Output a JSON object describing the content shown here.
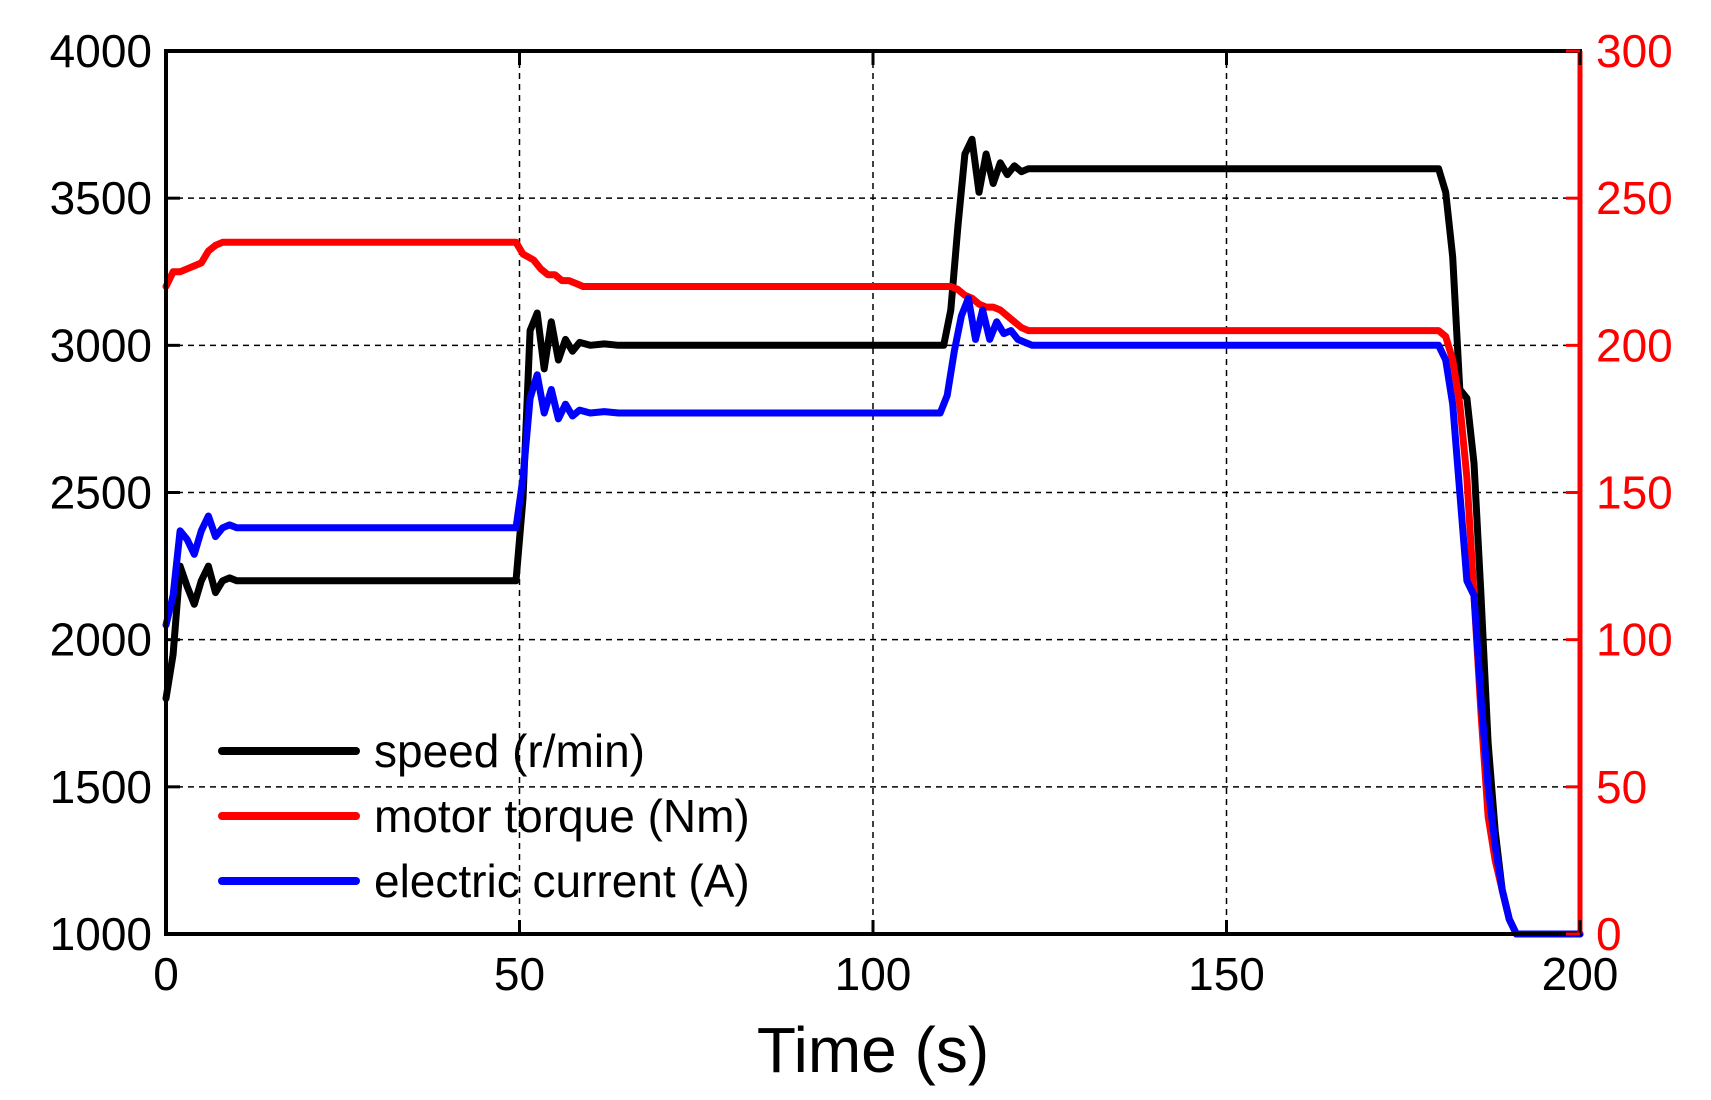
{
  "chart_data": {
    "type": "line",
    "title": "",
    "xlabel": "Time (s)",
    "ylabel_left": "",
    "ylabel_right": "",
    "xlim": [
      0,
      200
    ],
    "ylim_left": [
      1000,
      4000
    ],
    "ylim_right": [
      0,
      300
    ],
    "xticks": [
      "0",
      "50",
      "100",
      "150",
      "200"
    ],
    "yticks_left": [
      "1000",
      "1500",
      "2000",
      "2500",
      "3000",
      "3500",
      "4000"
    ],
    "yticks_right": [
      "0",
      "50",
      "100",
      "150",
      "200",
      "250",
      "300"
    ],
    "grid": true,
    "legend_position": "bottom-left",
    "colors": {
      "axis": "#000000",
      "right_axis": "#ff0000",
      "grid": "#000000"
    },
    "series": [
      {
        "name": "speed (r/min)",
        "axis": "left",
        "color": "#000000",
        "x": [
          0,
          1,
          2,
          3,
          4,
          5,
          6,
          7,
          8,
          9,
          10,
          12,
          20,
          30,
          40,
          49.5,
          50.5,
          51.5,
          52.5,
          53.5,
          54.5,
          55.5,
          56.5,
          57.5,
          58.5,
          60,
          62,
          64,
          80,
          100,
          110,
          111,
          112,
          113,
          114,
          115,
          116,
          117,
          118,
          119,
          120,
          121,
          122,
          123,
          124,
          140,
          160,
          180,
          181,
          182,
          183,
          184,
          185,
          186,
          187,
          188,
          189,
          190,
          191,
          192,
          193,
          200
        ],
        "values": [
          1800,
          1950,
          2250,
          2180,
          2120,
          2200,
          2250,
          2160,
          2200,
          2210,
          2200,
          2200,
          2200,
          2200,
          2200,
          2200,
          2480,
          3050,
          3110,
          2920,
          3080,
          2950,
          3020,
          2980,
          3010,
          3000,
          3005,
          3000,
          3000,
          3000,
          3000,
          3120,
          3400,
          3650,
          3700,
          3520,
          3650,
          3550,
          3620,
          3580,
          3610,
          3590,
          3600,
          3600,
          3600,
          3600,
          3600,
          3600,
          3520,
          3300,
          2850,
          2820,
          2600,
          2150,
          1650,
          1350,
          1150,
          1050,
          1000,
          1000,
          1000,
          1000
        ]
      },
      {
        "name": "motor torque (Nm)",
        "axis": "right",
        "color": "#ff0000",
        "x": [
          0,
          1,
          2,
          3,
          4,
          5,
          6,
          7,
          8,
          9,
          10,
          20,
          30,
          40,
          49.5,
          50.5,
          52,
          53,
          54,
          55,
          56,
          57,
          58,
          59,
          60,
          80,
          100,
          110,
          111,
          112,
          113,
          114,
          115,
          116,
          117,
          118,
          119,
          120,
          121,
          122,
          123,
          124,
          140,
          160,
          180,
          181,
          182,
          183,
          184,
          185,
          186,
          187,
          188,
          189,
          190,
          191,
          192,
          200
        ],
        "values": [
          220,
          225,
          225,
          226,
          227,
          228,
          232,
          234,
          235,
          235,
          235,
          235,
          235,
          235,
          235,
          231,
          229,
          226,
          224,
          224,
          222,
          222,
          221,
          220,
          220,
          220,
          220,
          220,
          220,
          219,
          217,
          216,
          214,
          213,
          213,
          212,
          210,
          208,
          206,
          205,
          205,
          205,
          205,
          205,
          205,
          203,
          195,
          180,
          155,
          115,
          75,
          40,
          25,
          15,
          5,
          0,
          0,
          0
        ]
      },
      {
        "name": "electric current (A)",
        "axis": "left",
        "color": "#0000ff",
        "x": [
          0,
          1,
          2,
          3,
          4,
          5,
          6,
          7,
          8,
          9,
          10,
          20,
          30,
          40,
          49.5,
          50.5,
          51.5,
          52.5,
          53.5,
          54.5,
          55.5,
          56.5,
          57.5,
          58.5,
          60,
          62,
          64,
          80,
          100,
          109.5,
          110.5,
          111.5,
          112.5,
          113.5,
          114.5,
          115.5,
          116.5,
          117.5,
          118.5,
          119.5,
          120.5,
          121.5,
          122.5,
          123.5,
          140,
          160,
          180,
          181,
          182,
          183,
          184,
          185,
          186,
          187,
          188,
          189,
          190,
          191,
          200
        ],
        "values": [
          2050,
          2150,
          2370,
          2340,
          2290,
          2370,
          2420,
          2350,
          2380,
          2390,
          2380,
          2380,
          2380,
          2380,
          2380,
          2550,
          2820,
          2900,
          2770,
          2850,
          2750,
          2800,
          2760,
          2780,
          2770,
          2775,
          2770,
          2770,
          2770,
          2770,
          2830,
          2980,
          3100,
          3160,
          3020,
          3120,
          3020,
          3080,
          3040,
          3050,
          3020,
          3010,
          3000,
          3000,
          3000,
          3000,
          3000,
          2950,
          2800,
          2500,
          2200,
          2150,
          1800,
          1500,
          1300,
          1150,
          1050,
          1000,
          1000
        ]
      }
    ]
  }
}
